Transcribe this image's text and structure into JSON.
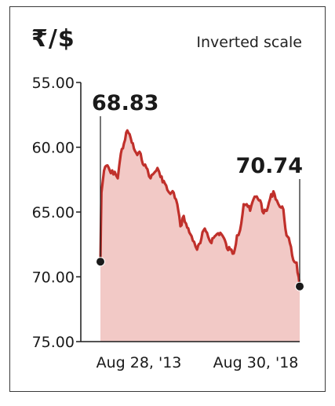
{
  "title": "₹/$",
  "subtitle": "Inverted scale",
  "chart_data": {
    "type": "area",
    "title": "₹/$",
    "subtitle": "Inverted scale",
    "y_scale": "inverted",
    "ylim": [
      55,
      75
    ],
    "yticks": [
      "55.00",
      "60.00",
      "65.00",
      "70.00",
      "75.00"
    ],
    "xticks": [
      "Aug 28, '13",
      "Aug 30, '18"
    ],
    "grid": false,
    "colors": {
      "line": "#c0302b",
      "fill": "#f2c9c6",
      "marker": "#1a1a1a"
    },
    "annotations": [
      {
        "label": "68.83",
        "x": "Aug 28, '13",
        "y": 68.83
      },
      {
        "label": "70.74",
        "x": "Aug 30, '18",
        "y": 70.74
      }
    ],
    "series": [
      {
        "x": [
          "2013-08-28",
          "2013-09-06",
          "2013-09-30",
          "2013-11-01",
          "2013-12-02",
          "2014-01-06",
          "2014-02-03",
          "2014-03-03",
          "2014-04-01",
          "2014-05-02",
          "2014-06-02",
          "2014-07-01",
          "2014-08-01",
          "2014-09-01",
          "2014-10-01",
          "2014-11-03",
          "2014-12-01",
          "2015-01-01",
          "2015-02-02",
          "2015-03-02",
          "2015-04-01",
          "2015-05-04",
          "2015-06-01",
          "2015-07-01",
          "2015-08-03",
          "2015-09-01",
          "2015-10-01",
          "2015-11-02",
          "2015-12-01",
          "2016-01-04",
          "2016-02-01",
          "2016-03-01",
          "2016-04-01",
          "2016-05-02",
          "2016-06-01",
          "2016-07-01",
          "2016-08-01",
          "2016-09-01",
          "2016-10-03",
          "2016-11-01",
          "2016-12-01",
          "2017-01-02",
          "2017-02-01",
          "2017-03-01",
          "2017-04-03",
          "2017-05-01",
          "2017-06-01",
          "2017-07-03",
          "2017-08-01",
          "2017-09-01",
          "2017-10-03",
          "2017-11-01",
          "2017-12-01",
          "2018-01-01",
          "2018-02-01",
          "2018-03-01",
          "2018-04-02",
          "2018-05-01",
          "2018-06-01",
          "2018-07-02",
          "2018-08-01",
          "2018-08-30"
        ],
        "values": [
          68.83,
          63.5,
          61.8,
          61.4,
          62.0,
          61.9,
          62.4,
          60.5,
          59.7,
          58.7,
          59.3,
          60.1,
          60.6,
          60.5,
          61.4,
          61.7,
          62.4,
          62.0,
          61.6,
          62.3,
          62.6,
          63.3,
          63.6,
          63.5,
          64.4,
          66.1,
          65.3,
          66.2,
          66.7,
          67.3,
          67.9,
          67.4,
          66.4,
          66.6,
          67.3,
          67.0,
          66.7,
          66.6,
          67.0,
          67.8,
          67.9,
          68.2,
          66.8,
          66.4,
          64.4,
          64.4,
          64.9,
          64.0,
          63.8,
          64.1,
          65.1,
          64.9,
          64.0,
          63.4,
          64.1,
          64.6,
          64.8,
          66.8,
          67.4,
          68.7,
          68.9,
          70.74
        ]
      }
    ]
  }
}
